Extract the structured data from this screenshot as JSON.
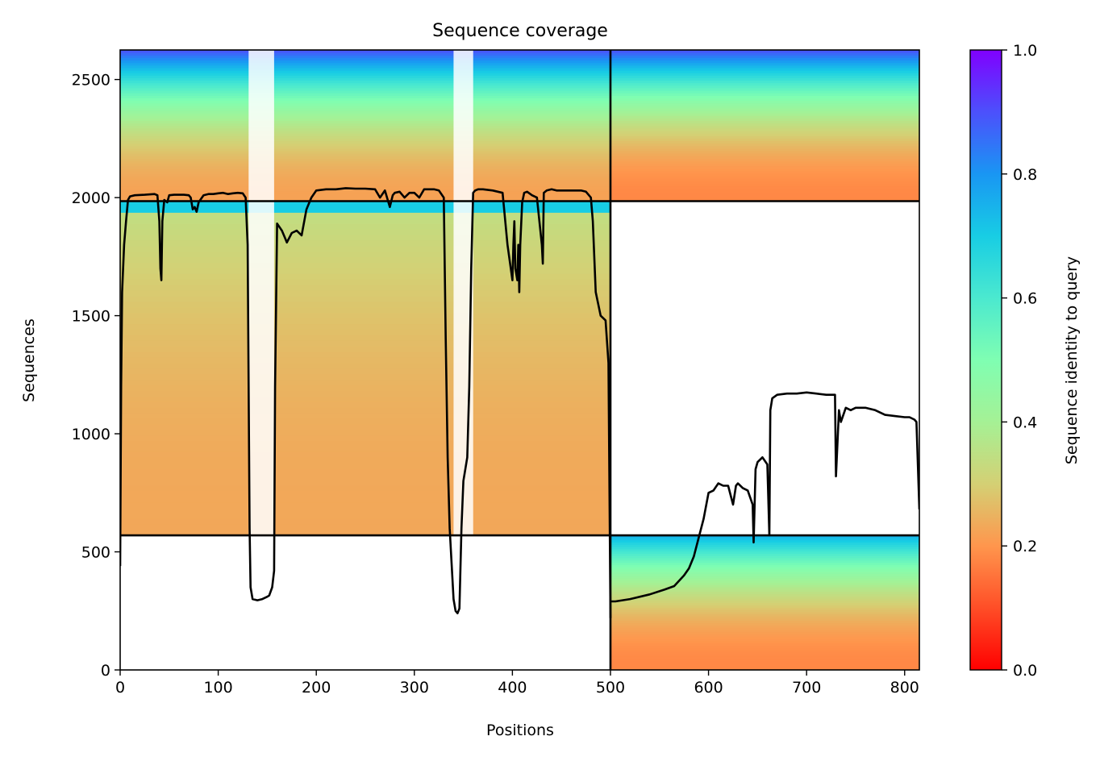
{
  "chart_data": {
    "type": "heatmap",
    "title": "Sequence coverage",
    "xlabel": "Positions",
    "ylabel": "Sequences",
    "xlim": [
      0,
      815
    ],
    "ylim": [
      0,
      2625
    ],
    "x_ticks": [
      0,
      100,
      200,
      300,
      400,
      500,
      600,
      700,
      800
    ],
    "y_ticks": [
      0,
      500,
      1000,
      1500,
      2000,
      2500
    ],
    "colorbar": {
      "label": "Sequence identity to query",
      "colormap": "rainbow_r",
      "range": [
        0.0,
        1.0
      ],
      "ticks": [
        0.0,
        0.2,
        0.4,
        0.6,
        0.8,
        1.0
      ],
      "tick_labels": [
        "0.0",
        "0.2",
        "0.4",
        "0.6",
        "0.8",
        "1.0"
      ]
    },
    "chain_boundaries": {
      "vertical_x": [
        500
      ],
      "horizontal_y": [
        570,
        1985
      ]
    },
    "blocks": [
      {
        "name": "chain A, rows 0-570",
        "x": [
          0,
          500
        ],
        "y": [
          0,
          570
        ],
        "coverage": "empty"
      },
      {
        "name": "chain A, rows 570-1985",
        "x": [
          0,
          500
        ],
        "y": [
          570,
          1985
        ],
        "identity_bottom": 0.23,
        "identity_top": 0.35,
        "identity_high_band": [
          1930,
          1985,
          0.7
        ],
        "gaps_x": [
          [
            131,
            157
          ],
          [
            340,
            360
          ]
        ]
      },
      {
        "name": "chain A, rows 1985-2625",
        "x": [
          0,
          500
        ],
        "y": [
          1985,
          2625
        ],
        "identity_bottom": 0.22,
        "identity_top": 0.9,
        "gaps_x": [
          [
            131,
            157
          ],
          [
            340,
            360
          ]
        ]
      },
      {
        "name": "chain B, rows 0-570",
        "x": [
          500,
          815
        ],
        "y": [
          0,
          570
        ],
        "identity_bottom": 0.18,
        "identity_top": 0.75
      },
      {
        "name": "chain B, rows 570-1985",
        "x": [
          500,
          815
        ],
        "y": [
          570,
          1985
        ],
        "coverage": "empty"
      },
      {
        "name": "chain B, rows 1985-2625",
        "x": [
          500,
          815
        ],
        "y": [
          1985,
          2625
        ],
        "identity_bottom": 0.18,
        "identity_top": 0.9
      }
    ],
    "series": [
      {
        "style": "black line",
        "x": [
          0,
          1,
          2,
          4,
          6,
          8,
          10,
          15,
          25,
          35,
          38,
          40,
          41,
          42,
          43,
          45,
          48,
          50,
          55,
          60,
          65,
          70,
          72,
          74,
          76,
          78,
          80,
          85,
          90,
          95,
          100,
          105,
          110,
          115,
          120,
          125,
          128,
          130,
          131,
          132,
          133,
          135,
          140,
          145,
          150,
          152,
          155,
          157,
          158,
          160,
          165,
          168,
          170,
          175,
          180,
          185,
          190,
          195,
          200,
          210,
          220,
          230,
          240,
          250,
          260,
          265,
          270,
          275,
          278,
          280,
          285,
          290,
          295,
          300,
          305,
          310,
          315,
          320,
          325,
          330,
          332,
          334,
          336,
          338,
          340,
          342,
          344,
          346,
          348,
          350,
          352,
          354,
          356,
          358,
          360,
          362,
          365,
          370,
          380,
          390,
          395,
          400,
          401,
          402,
          403,
          405,
          406,
          407,
          408,
          410,
          412,
          415,
          420,
          425,
          430,
          431,
          432,
          435,
          440,
          445,
          450,
          460,
          470,
          475,
          480,
          482,
          485,
          490,
          495,
          498,
          500
        ],
        "y": [
          440,
          1200,
          1600,
          1800,
          1900,
          1990,
          2005,
          2010,
          2012,
          2015,
          2010,
          1900,
          1700,
          1650,
          1900,
          1990,
          1980,
          2010,
          2012,
          2012,
          2012,
          2010,
          2000,
          1950,
          1960,
          1940,
          1980,
          2010,
          2015,
          2015,
          2018,
          2020,
          2015,
          2018,
          2020,
          2018,
          2000,
          1800,
          1200,
          600,
          350,
          300,
          295,
          300,
          310,
          315,
          350,
          420,
          1200,
          1890,
          1860,
          1830,
          1810,
          1850,
          1860,
          1840,
          1950,
          2000,
          2030,
          2035,
          2035,
          2040,
          2038,
          2038,
          2035,
          2000,
          2030,
          1960,
          2010,
          2020,
          2025,
          2000,
          2020,
          2020,
          2000,
          2035,
          2035,
          2035,
          2030,
          2000,
          1400,
          900,
          600,
          450,
          300,
          250,
          240,
          260,
          600,
          800,
          850,
          900,
          1200,
          1700,
          2020,
          2030,
          2035,
          2035,
          2030,
          2020,
          1800,
          1650,
          1800,
          1900,
          1700,
          1650,
          1800,
          1600,
          1800,
          1980,
          2020,
          2025,
          2010,
          2000,
          1800,
          1720,
          2020,
          2030,
          2035,
          2030,
          2030,
          2030,
          2030,
          2025,
          2000,
          1900,
          1600,
          1500,
          1480,
          1300,
          220
        ]
      },
      {
        "style": "black line",
        "x": [
          500,
          505,
          520,
          540,
          555,
          565,
          575,
          580,
          585,
          590,
          595,
          600,
          605,
          610,
          615,
          620,
          625,
          628,
          630,
          635,
          640,
          645,
          646,
          648,
          650,
          655,
          660,
          662,
          663,
          665,
          670,
          680,
          690,
          700,
          710,
          720,
          725,
          729,
          730,
          733,
          735,
          740,
          745,
          750,
          760,
          770,
          780,
          790,
          800,
          805,
          810,
          812,
          815
        ],
        "y": [
          290,
          290,
          300,
          320,
          340,
          355,
          400,
          430,
          480,
          560,
          640,
          750,
          760,
          790,
          780,
          780,
          700,
          780,
          790,
          770,
          760,
          700,
          540,
          850,
          880,
          900,
          870,
          570,
          1100,
          1150,
          1165,
          1170,
          1170,
          1175,
          1170,
          1165,
          1165,
          1165,
          820,
          1100,
          1050,
          1110,
          1100,
          1110,
          1110,
          1100,
          1080,
          1075,
          1070,
          1070,
          1060,
          1050,
          680
        ]
      }
    ]
  }
}
